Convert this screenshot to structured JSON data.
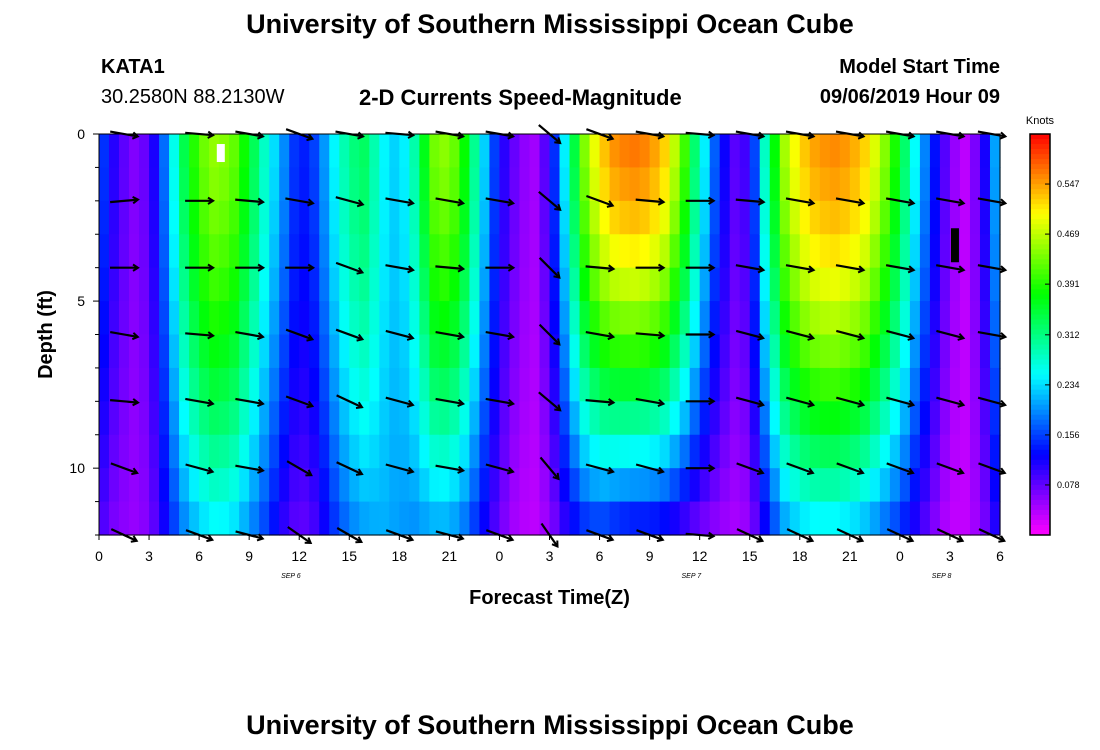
{
  "header": {
    "title": "University of Southern Mississippi Ocean Cube",
    "station": "KATA1",
    "coords": "30.2580N 88.2130W",
    "subtitle": "2-D Currents Speed-Magnitude",
    "model_label": "Model Start Time",
    "model_time": "09/06/2019 Hour 09"
  },
  "footer": {
    "title": "University of Southern Mississippi Ocean Cube"
  },
  "chart_data": {
    "type": "heatmap",
    "title": "2-D Currents Speed-Magnitude",
    "xlabel": "Forecast Time(Z)",
    "ylabel": "Depth (ft)",
    "x_ticks": [
      "0",
      "3",
      "6",
      "9",
      "12",
      "15",
      "18",
      "21",
      "0",
      "3",
      "6",
      "9",
      "12",
      "15",
      "18",
      "21",
      "0",
      "3",
      "6"
    ],
    "x_range_hours": [
      0,
      54
    ],
    "date_labels": [
      {
        "text": "SEP 6",
        "hour": 11.5
      },
      {
        "text": "SEP 7",
        "hour": 35.5
      },
      {
        "text": "SEP 8",
        "hour": 50.5
      }
    ],
    "y_ticks": [
      0,
      5,
      10
    ],
    "y_range_ft": [
      0,
      12
    ],
    "colorbar": {
      "unit": "Knots",
      "min": 0,
      "max": 0.625,
      "tick_labels": [
        "0.547",
        "0.469",
        "0.391",
        "0.312",
        "0.234",
        "0.156",
        "0.078"
      ],
      "tick_values": [
        0.547,
        0.469,
        0.391,
        0.312,
        0.234,
        0.156,
        0.078
      ]
    },
    "speed_profile": {
      "hours": [
        0,
        1,
        2,
        3,
        4,
        5,
        6,
        7,
        8,
        9,
        10,
        11,
        12,
        13,
        14,
        15,
        16,
        17,
        18,
        19,
        20,
        21,
        22,
        23,
        24,
        25,
        26,
        27,
        28,
        29,
        30,
        31,
        32,
        33,
        34,
        35,
        36,
        37,
        38,
        39,
        40,
        41,
        42,
        43,
        44,
        45,
        46,
        47,
        48,
        49,
        50,
        51,
        52,
        53,
        54
      ],
      "surface_knots": [
        0.17,
        0.1,
        0.06,
        0.08,
        0.19,
        0.33,
        0.42,
        0.45,
        0.43,
        0.36,
        0.27,
        0.2,
        0.13,
        0.16,
        0.24,
        0.31,
        0.33,
        0.25,
        0.22,
        0.3,
        0.43,
        0.45,
        0.37,
        0.24,
        0.12,
        0.07,
        0.04,
        0.1,
        0.26,
        0.43,
        0.52,
        0.56,
        0.57,
        0.56,
        0.52,
        0.42,
        0.28,
        0.16,
        0.08,
        0.1,
        0.3,
        0.45,
        0.52,
        0.55,
        0.56,
        0.55,
        0.52,
        0.45,
        0.36,
        0.24,
        0.14,
        0.06,
        0.03,
        0.1,
        0.25
      ],
      "bottom_knots": [
        0.09,
        0.06,
        0.05,
        0.06,
        0.12,
        0.18,
        0.22,
        0.24,
        0.23,
        0.19,
        0.15,
        0.1,
        0.07,
        0.09,
        0.14,
        0.18,
        0.2,
        0.21,
        0.2,
        0.19,
        0.2,
        0.2,
        0.17,
        0.12,
        0.07,
        0.04,
        0.03,
        0.05,
        0.1,
        0.13,
        0.14,
        0.12,
        0.11,
        0.11,
        0.1,
        0.08,
        0.06,
        0.05,
        0.04,
        0.05,
        0.12,
        0.19,
        0.22,
        0.23,
        0.23,
        0.22,
        0.2,
        0.17,
        0.14,
        0.1,
        0.06,
        0.03,
        0.03,
        0.06,
        0.12
      ]
    },
    "vectors": {
      "depths_ft": [
        0,
        2,
        4,
        6,
        8,
        10,
        12
      ],
      "hours": [
        1.5,
        6,
        9,
        12,
        15,
        18,
        21,
        24,
        27,
        30,
        33,
        36,
        39,
        42,
        45,
        48,
        51,
        53.5
      ],
      "angles_deg": [
        [
          190,
          185,
          190,
          200,
          190,
          185,
          190,
          190,
          220,
          200,
          190,
          185,
          190,
          190,
          190,
          190,
          190,
          190
        ],
        [
          175,
          180,
          185,
          190,
          195,
          190,
          190,
          190,
          220,
          200,
          185,
          180,
          185,
          190,
          190,
          190,
          190,
          190
        ],
        [
          180,
          180,
          180,
          180,
          200,
          190,
          185,
          180,
          225,
          185,
          180,
          180,
          190,
          190,
          190,
          190,
          190,
          190
        ],
        [
          190,
          185,
          190,
          200,
          200,
          195,
          190,
          190,
          225,
          190,
          185,
          180,
          195,
          195,
          195,
          195,
          195,
          190
        ],
        [
          185,
          190,
          190,
          200,
          205,
          195,
          190,
          190,
          220,
          185,
          190,
          180,
          195,
          195,
          195,
          195,
          195,
          195
        ],
        [
          200,
          195,
          190,
          210,
          205,
          195,
          190,
          195,
          230,
          195,
          195,
          180,
          200,
          200,
          200,
          200,
          200,
          200
        ],
        [
          205,
          200,
          195,
          215,
          210,
          200,
          195,
          200,
          235,
          200,
          200,
          185,
          205,
          205,
          205,
          205,
          205,
          205
        ]
      ]
    },
    "markers": [
      {
        "hour": 7.3,
        "depth_ft": 0.3,
        "color": "white"
      },
      {
        "hour": 51.3,
        "depth_ft": 3.0,
        "color": "black"
      }
    ]
  }
}
